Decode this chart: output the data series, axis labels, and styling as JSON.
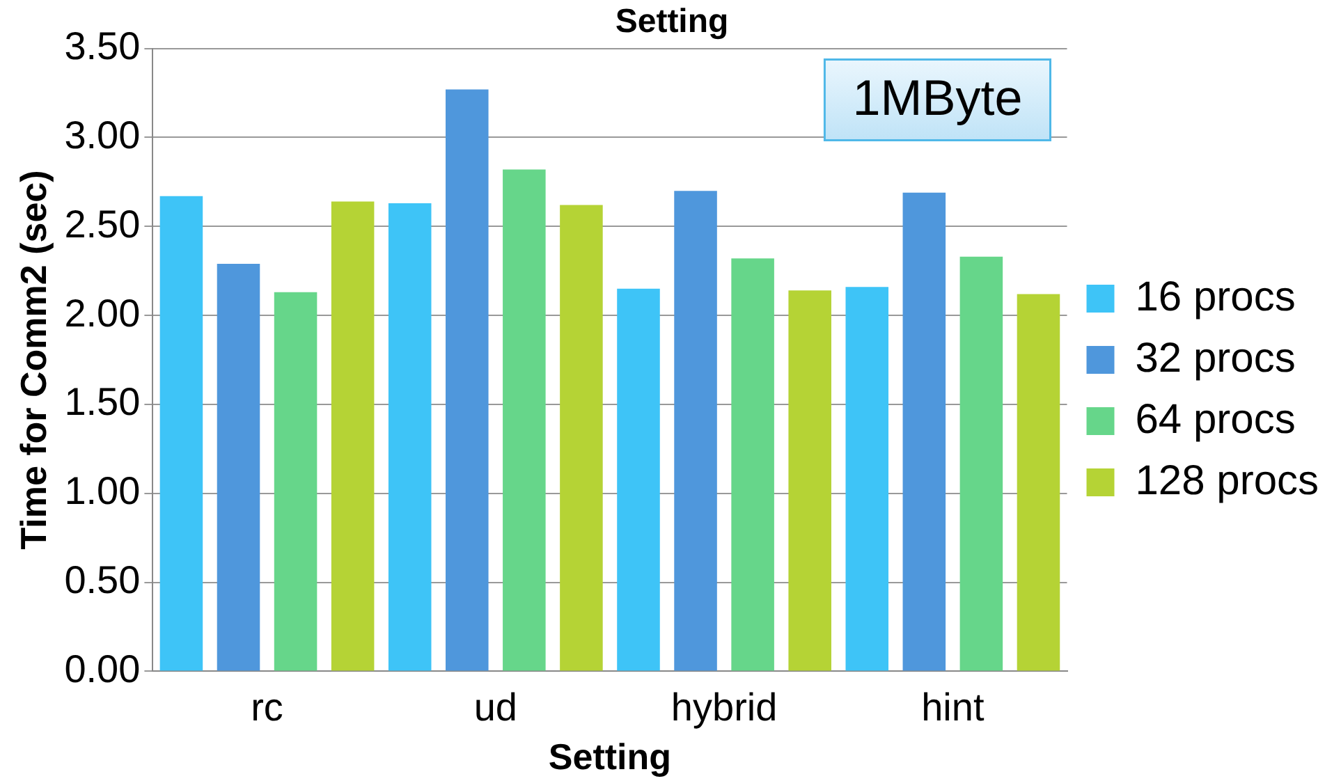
{
  "chart_data": {
    "type": "bar",
    "title": "Setting",
    "xlabel": "Setting",
    "ylabel": "Time for Comm2 (sec)",
    "categories": [
      "rc",
      "ud",
      "hybrid",
      "hint"
    ],
    "series": [
      {
        "name": "16 procs",
        "color": "#3ec4f7",
        "values": [
          2.67,
          2.63,
          2.15,
          2.16
        ]
      },
      {
        "name": "32 procs",
        "color": "#4f97dc",
        "values": [
          2.29,
          3.27,
          2.7,
          2.69
        ]
      },
      {
        "name": "64 procs",
        "color": "#66d68a",
        "values": [
          2.13,
          2.82,
          2.32,
          2.33
        ]
      },
      {
        "name": "128 procs",
        "color": "#b5d335",
        "values": [
          2.64,
          2.62,
          2.14,
          2.12
        ]
      }
    ],
    "ylim": [
      0,
      3.5
    ],
    "yticks": [
      {
        "value": 0,
        "label": "0.00"
      },
      {
        "value": 0.5,
        "label": "0.50"
      },
      {
        "value": 1,
        "label": "1.00"
      },
      {
        "value": 1.5,
        "label": "1.50"
      },
      {
        "value": 2,
        "label": "2.00"
      },
      {
        "value": 2.5,
        "label": "2.50"
      },
      {
        "value": 3,
        "label": "3.00"
      },
      {
        "value": 3.5,
        "label": "3.50"
      }
    ],
    "grid": "y",
    "legend": "right",
    "annotations": [
      "1MByte"
    ]
  }
}
